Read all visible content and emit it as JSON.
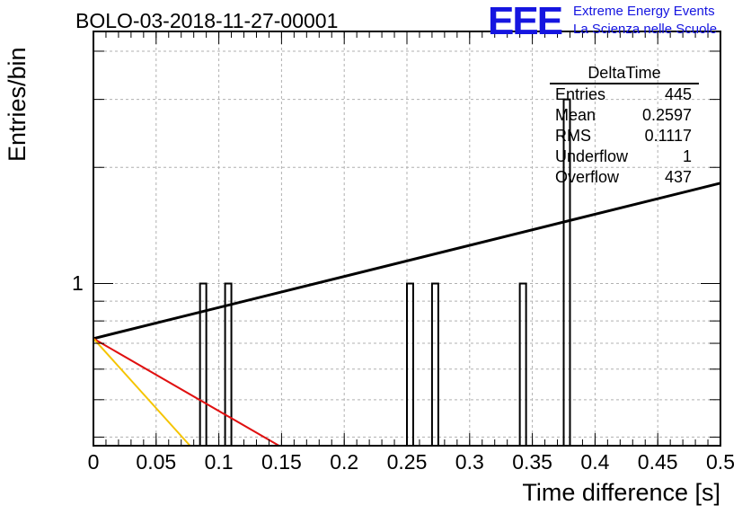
{
  "header": {
    "title": "BOLO-03-2018-11-27-00001",
    "logo": "EEE",
    "org_line1": "Extreme Energy Events",
    "org_line2": "La Scienza nelle Scuole"
  },
  "stats": {
    "title": "DeltaTime",
    "rows": [
      {
        "label": "Entries",
        "value": "445"
      },
      {
        "label": "Mean",
        "value": "0.2597"
      },
      {
        "label": "RMS",
        "value": "0.1117"
      },
      {
        "label": "Underflow",
        "value": "1"
      },
      {
        "label": "Overflow",
        "value": "437"
      }
    ]
  },
  "chart_data": {
    "type": "bar",
    "xlabel": "Time difference [s]",
    "ylabel": "Entries/bin",
    "xlim": [
      0,
      0.5
    ],
    "ylim": [
      0.38,
      4.5
    ],
    "yscale": "log",
    "grid": true,
    "x_ticks": [
      "0",
      "0.05",
      "0.1",
      "0.15",
      "0.2",
      "0.25",
      "0.3",
      "0.35",
      "0.4",
      "0.45",
      "0.5"
    ],
    "y_ticks": [
      "1"
    ],
    "bin_width": 0.005,
    "bins": [
      {
        "x": 0.085,
        "value": 1
      },
      {
        "x": 0.105,
        "value": 1
      },
      {
        "x": 0.25,
        "value": 1
      },
      {
        "x": 0.27,
        "value": 1
      },
      {
        "x": 0.34,
        "value": 1
      },
      {
        "x": 0.375,
        "value": 3
      }
    ],
    "fits": [
      {
        "color": "#000000",
        "x": [
          0,
          0.5
        ],
        "y": [
          0.72,
          1.82
        ]
      },
      {
        "color": "#e01010",
        "x": [
          0,
          0.148
        ],
        "y": [
          0.72,
          0.38
        ]
      },
      {
        "color": "#f5c400",
        "x": [
          0,
          0.077
        ],
        "y": [
          0.72,
          0.38
        ]
      }
    ]
  }
}
